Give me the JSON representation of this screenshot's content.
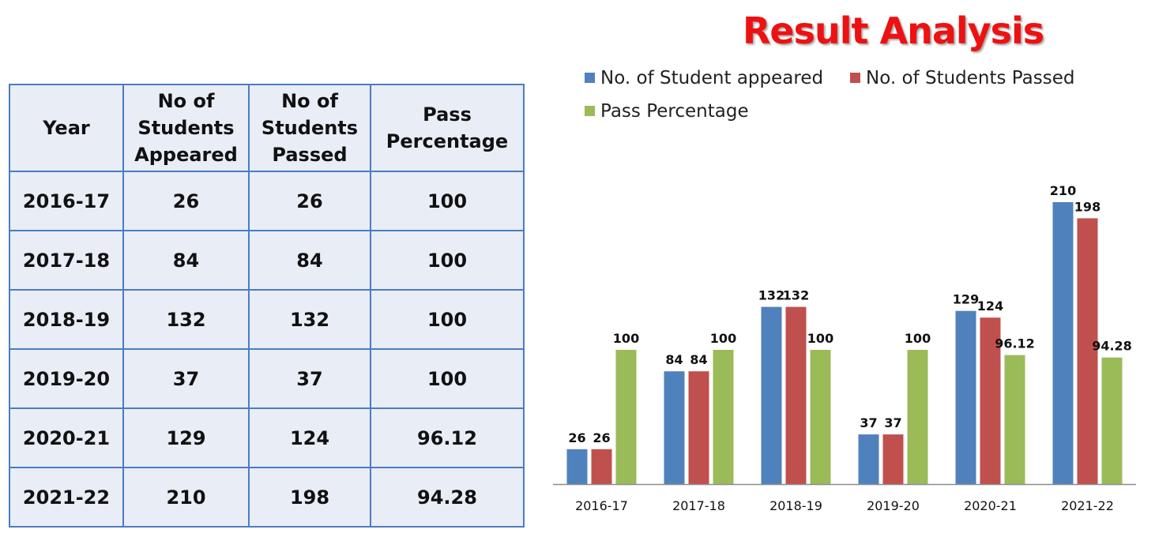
{
  "title": "Result Analysis",
  "table": {
    "headers": [
      "Year",
      "No of Students Appeared",
      "No of Students Passed",
      "Pass Percentage"
    ],
    "header_lines": [
      [
        "Year"
      ],
      [
        "No of",
        "Students",
        "Appeared"
      ],
      [
        "No of",
        "Students",
        "Passed"
      ],
      [
        "Pass",
        "Percentage"
      ]
    ],
    "rows": [
      [
        "2016-17",
        "26",
        "26",
        "100"
      ],
      [
        "2017-18",
        "84",
        "84",
        "100"
      ],
      [
        "2018-19",
        "132",
        "132",
        "100"
      ],
      [
        "2019-20",
        "37",
        "37",
        "100"
      ],
      [
        "2020-21",
        "129",
        "124",
        "96.12"
      ],
      [
        "2021-22",
        "210",
        "198",
        "94.28"
      ]
    ]
  },
  "chart_data": {
    "type": "bar",
    "categories": [
      "2016-17",
      "2017-18",
      "2018-19",
      "2019-20",
      "2020-21",
      "2021-22"
    ],
    "series": [
      {
        "name": "No. of Student appeared",
        "color": "#4f81bd",
        "values": [
          26,
          84,
          132,
          37,
          129,
          210
        ],
        "labels": [
          "26",
          "84",
          "132",
          "37",
          "129",
          "210"
        ]
      },
      {
        "name": "No. of Students Passed",
        "color": "#c0504d",
        "values": [
          26,
          84,
          132,
          37,
          124,
          198
        ],
        "labels": [
          "26",
          "84",
          "132",
          "37",
          "124",
          "198"
        ]
      },
      {
        "name": "Pass Percentage",
        "color": "#9bbb59",
        "values": [
          100,
          100,
          100,
          100,
          96.12,
          94.28
        ],
        "labels": [
          "100",
          "100",
          "100",
          "100",
          "96.12",
          "94.28"
        ]
      }
    ],
    "ylim": [
      0,
      210
    ],
    "legend": "top",
    "grid": false
  }
}
